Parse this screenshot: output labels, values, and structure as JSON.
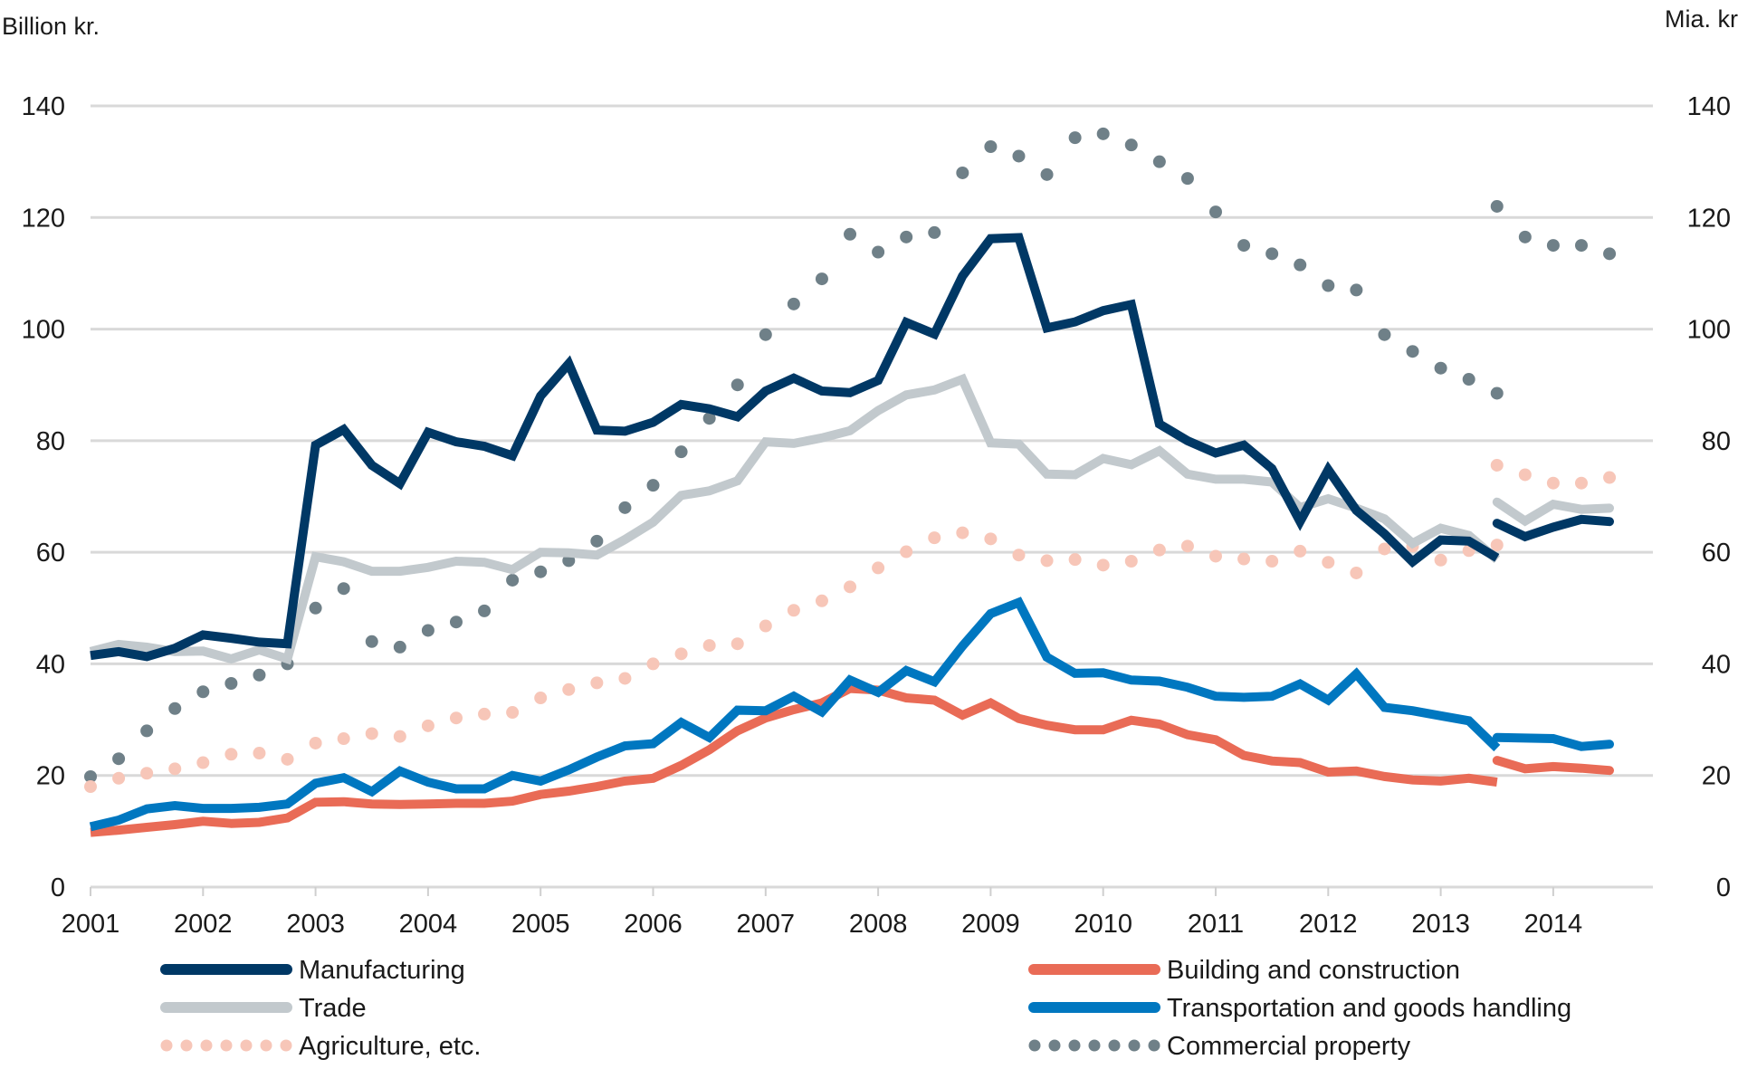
{
  "chart_data": {
    "type": "line",
    "title": "",
    "left_axis_label": "Billion kr.",
    "right_axis_label": "Mia. kr.",
    "xlabel": "",
    "ylabel": "Billion kr.",
    "xlim": [
      2001,
      2014.9
    ],
    "ylim": [
      0,
      140
    ],
    "y_ticks": [
      0,
      20,
      40,
      60,
      80,
      100,
      120,
      140
    ],
    "y_tick_labels": [
      "0",
      "20",
      "40",
      "60",
      "80",
      "100",
      "120",
      "140"
    ],
    "x_ticks": [
      2001,
      2002,
      2003,
      2004,
      2005,
      2006,
      2007,
      2008,
      2009,
      2010,
      2011,
      2012,
      2013,
      2014
    ],
    "x_tick_labels": [
      "2001",
      "2002",
      "2003",
      "2004",
      "2005",
      "2006",
      "2007",
      "2008",
      "2009",
      "2010",
      "2011",
      "2012",
      "2013",
      "2014"
    ],
    "grid": true,
    "legend_position": "bottom",
    "series": [
      {
        "name": "Manufacturing",
        "color": "#003865",
        "style": "solid",
        "segments": [
          {
            "x": [
              2001.0,
              2001.25,
              2001.5,
              2001.75,
              2002.0,
              2002.25,
              2002.5,
              2002.75,
              2003.0,
              2003.25,
              2003.5,
              2003.75,
              2004.0,
              2004.25,
              2004.5,
              2004.75,
              2005.0,
              2005.25,
              2005.5,
              2005.75,
              2006.0,
              2006.25,
              2006.5,
              2006.75,
              2007.0,
              2007.25,
              2007.5,
              2007.75,
              2008.0,
              2008.25,
              2008.5,
              2008.75,
              2009.0,
              2009.25,
              2009.5,
              2009.75,
              2010.0,
              2010.25,
              2010.5,
              2010.75,
              2011.0,
              2011.25,
              2011.5,
              2011.75,
              2012.0,
              2012.25,
              2012.5,
              2012.75,
              2013.0,
              2013.25,
              2013.5
            ],
            "y": [
              41.5,
              42.2,
              41.3,
              42.8,
              45.2,
              44.6,
              43.9,
              43.6,
              79.2,
              82.0,
              75.6,
              72.3,
              81.5,
              79.8,
              79.0,
              77.3,
              88.0,
              93.8,
              81.9,
              81.7,
              83.3,
              86.5,
              85.7,
              84.3,
              88.9,
              91.2,
              88.9,
              88.6,
              90.8,
              101.2,
              99.1,
              109.5,
              116.2,
              116.4,
              100.2,
              101.3,
              103.3,
              104.4,
              83.0,
              80.0,
              77.8,
              79.2,
              75.0,
              65.5,
              74.8,
              67.5,
              63.3,
              58.3,
              62.2,
              62.0,
              59.0
            ]
          },
          {
            "x": [
              2013.5,
              2013.75,
              2014.0,
              2014.25,
              2014.5
            ],
            "y": [
              65.2,
              62.8,
              64.5,
              65.9,
              65.5
            ]
          }
        ]
      },
      {
        "name": "Trade",
        "color": "#c2c9cd",
        "style": "solid",
        "segments": [
          {
            "x": [
              2001.0,
              2001.25,
              2001.5,
              2001.75,
              2002.0,
              2002.25,
              2002.5,
              2002.75,
              2003.0,
              2003.25,
              2003.5,
              2003.75,
              2004.0,
              2004.25,
              2004.5,
              2004.75,
              2005.0,
              2005.25,
              2005.5,
              2005.75,
              2006.0,
              2006.25,
              2006.5,
              2006.75,
              2007.0,
              2007.25,
              2007.5,
              2007.75,
              2008.0,
              2008.25,
              2008.5,
              2008.75,
              2009.0,
              2009.25,
              2009.5,
              2009.75,
              2010.0,
              2010.25,
              2010.5,
              2010.75,
              2011.0,
              2011.25,
              2011.5,
              2011.75,
              2012.0,
              2012.25,
              2012.5,
              2012.75,
              2013.0,
              2013.25,
              2013.5
            ],
            "y": [
              42.2,
              43.5,
              43.0,
              42.2,
              42.3,
              40.9,
              42.5,
              40.9,
              59.2,
              58.3,
              56.6,
              56.6,
              57.3,
              58.4,
              58.2,
              56.9,
              60.0,
              59.9,
              59.5,
              62.3,
              65.4,
              70.2,
              71.0,
              72.8,
              79.8,
              79.5,
              80.5,
              81.8,
              85.4,
              88.2,
              89.1,
              91.0,
              79.6,
              79.4,
              74.0,
              73.9,
              76.8,
              75.7,
              78.2,
              74.0,
              73.1,
              73.1,
              72.6,
              68.0,
              69.6,
              67.9,
              66.0,
              61.6,
              64.3,
              63.0,
              58.7
            ]
          },
          {
            "x": [
              2013.5,
              2013.75,
              2014.0,
              2014.25,
              2014.5
            ],
            "y": [
              69.0,
              65.6,
              68.6,
              67.7,
              67.9
            ]
          }
        ]
      },
      {
        "name": "Agriculture, etc.",
        "color": "#f7c6b8",
        "style": "dotted",
        "segments": [
          {
            "x": [
              2001.0,
              2001.25,
              2001.5,
              2001.75,
              2002.0,
              2002.25,
              2002.5,
              2002.75,
              2003.0,
              2003.25,
              2003.5,
              2003.75,
              2004.0,
              2004.25,
              2004.5,
              2004.75,
              2005.0,
              2005.25,
              2005.5,
              2005.75,
              2006.0,
              2006.25,
              2006.5,
              2006.75,
              2007.0,
              2007.25,
              2007.5,
              2007.75,
              2008.0,
              2008.25,
              2008.5,
              2008.75,
              2009.0,
              2009.25,
              2009.5,
              2009.75,
              2010.0,
              2010.25,
              2010.5,
              2010.75,
              2011.0,
              2011.25,
              2011.5,
              2011.75,
              2012.0,
              2012.25,
              2012.5,
              2012.75,
              2013.0,
              2013.25,
              2013.5
            ],
            "y": [
              18.0,
              19.5,
              20.4,
              21.2,
              22.3,
              23.8,
              24.0,
              22.9,
              25.8,
              26.6,
              27.5,
              27.0,
              28.9,
              30.3,
              31.0,
              31.3,
              33.9,
              35.4,
              36.6,
              37.4,
              40.0,
              41.8,
              43.3,
              43.6,
              46.8,
              49.6,
              51.3,
              53.8,
              57.2,
              60.1,
              62.6,
              63.5,
              62.4,
              59.5,
              58.5,
              58.7,
              57.7,
              58.4,
              60.4,
              61.1,
              59.3,
              58.8,
              58.4,
              60.2,
              58.2,
              56.3,
              60.6,
              61.1,
              58.6,
              60.3,
              61.3
            ]
          },
          {
            "x": [
              2013.5,
              2013.75,
              2014.0,
              2014.25,
              2014.5
            ],
            "y": [
              75.6,
              73.9,
              72.4,
              72.4,
              73.4
            ]
          }
        ]
      },
      {
        "name": "Building and construction",
        "color": "#e96b56",
        "style": "solid",
        "segments": [
          {
            "x": [
              2001.0,
              2001.25,
              2001.5,
              2001.75,
              2002.0,
              2002.25,
              2002.5,
              2002.75,
              2003.0,
              2003.25,
              2003.5,
              2003.75,
              2004.0,
              2004.25,
              2004.5,
              2004.75,
              2005.0,
              2005.25,
              2005.5,
              2005.75,
              2006.0,
              2006.25,
              2006.5,
              2006.75,
              2007.0,
              2007.25,
              2007.5,
              2007.75,
              2008.0,
              2008.25,
              2008.5,
              2008.75,
              2009.0,
              2009.25,
              2009.5,
              2009.75,
              2010.0,
              2010.25,
              2010.5,
              2010.75,
              2011.0,
              2011.25,
              2011.5,
              2011.75,
              2012.0,
              2012.25,
              2012.5,
              2012.75,
              2013.0,
              2013.25,
              2013.5
            ],
            "y": [
              9.8,
              10.2,
              10.7,
              11.2,
              11.8,
              11.4,
              11.6,
              12.4,
              15.2,
              15.3,
              14.9,
              14.8,
              14.9,
              15.0,
              15.0,
              15.4,
              16.6,
              17.2,
              18.0,
              19.0,
              19.5,
              21.8,
              24.6,
              28.0,
              30.3,
              31.8,
              33.0,
              35.6,
              35.3,
              33.9,
              33.5,
              30.8,
              33.0,
              30.2,
              29.0,
              28.2,
              28.2,
              29.9,
              29.2,
              27.3,
              26.4,
              23.6,
              22.6,
              22.3,
              20.6,
              20.8,
              19.8,
              19.2,
              19.0,
              19.5,
              18.8
            ]
          },
          {
            "x": [
              2013.5,
              2013.75,
              2014.0,
              2014.25,
              2014.5
            ],
            "y": [
              22.7,
              21.2,
              21.6,
              21.3,
              20.9
            ]
          }
        ]
      },
      {
        "name": "Transportation and goods handling",
        "color": "#0077c0",
        "style": "solid",
        "segments": [
          {
            "x": [
              2001.0,
              2001.25,
              2001.5,
              2001.75,
              2002.0,
              2002.25,
              2002.5,
              2002.75,
              2003.0,
              2003.25,
              2003.5,
              2003.75,
              2004.0,
              2004.25,
              2004.5,
              2004.75,
              2005.0,
              2005.25,
              2005.5,
              2005.75,
              2006.0,
              2006.25,
              2006.5,
              2006.75,
              2007.0,
              2007.25,
              2007.5,
              2007.75,
              2008.0,
              2008.25,
              2008.5,
              2008.75,
              2009.0,
              2009.25,
              2009.5,
              2009.75,
              2010.0,
              2010.25,
              2010.5,
              2010.75,
              2011.0,
              2011.25,
              2011.5,
              2011.75,
              2012.0,
              2012.25,
              2012.5,
              2012.75,
              2013.0,
              2013.25,
              2013.5
            ],
            "y": [
              10.8,
              12.0,
              14.0,
              14.6,
              14.1,
              14.1,
              14.3,
              14.9,
              18.6,
              19.6,
              17.1,
              20.8,
              18.8,
              17.6,
              17.6,
              20.0,
              19.0,
              21.0,
              23.3,
              25.3,
              25.7,
              29.5,
              26.8,
              31.7,
              31.6,
              34.2,
              31.4,
              37.1,
              34.9,
              38.8,
              36.8,
              43.2,
              49.0,
              51.0,
              41.2,
              38.3,
              38.4,
              37.1,
              36.9,
              35.8,
              34.2,
              34.0,
              34.2,
              36.4,
              33.5,
              38.2,
              32.2,
              31.6,
              30.7,
              29.8,
              24.9
            ]
          },
          {
            "x": [
              2013.5,
              2013.75,
              2014.0,
              2014.25,
              2014.5
            ],
            "y": [
              26.8,
              26.7,
              26.6,
              25.2,
              25.6
            ]
          }
        ]
      },
      {
        "name": "Commercial property",
        "color": "#6f8088",
        "style": "dotted",
        "segments": [
          {
            "x": [
              2001.0,
              2001.25,
              2001.5,
              2001.75,
              2002.0,
              2002.25,
              2002.5,
              2002.75,
              2003.0,
              2003.25,
              2003.5,
              2003.75,
              2004.0,
              2004.25,
              2004.5,
              2004.75,
              2005.0,
              2005.25,
              2005.5,
              2005.75,
              2006.0,
              2006.25,
              2006.5,
              2006.75,
              2007.0,
              2007.25,
              2007.5,
              2007.75,
              2008.0,
              2008.25,
              2008.5,
              2008.75,
              2009.0,
              2009.25,
              2009.5,
              2009.75,
              2010.0,
              2010.25,
              2010.5,
              2010.75,
              2011.0,
              2011.25,
              2011.5,
              2011.75,
              2012.0,
              2012.25,
              2012.5,
              2012.75,
              2013.0,
              2013.25,
              2013.5
            ],
            "y": [
              19.8,
              23.0,
              28.0,
              32.0,
              35.0,
              36.5,
              38.0,
              40.0,
              50.0,
              53.5,
              44.0,
              43.0,
              46.0,
              47.5,
              49.5,
              55.0,
              56.5,
              58.5,
              62.0,
              68.0,
              72.0,
              78.0,
              84.0,
              90.0,
              99.0,
              104.5,
              109.0,
              117.0,
              113.8,
              116.5,
              117.3,
              128.0,
              132.7,
              131.0,
              127.7,
              134.3,
              135.0,
              133.0,
              130.0,
              127.0,
              121.0,
              115.0,
              113.5,
              111.5,
              107.8,
              107.0,
              99.0,
              96.0,
              93.0,
              91.0,
              88.5
            ]
          },
          {
            "x": [
              2013.5,
              2013.75,
              2014.0,
              2014.25,
              2014.5
            ],
            "y": [
              122.0,
              116.5,
              115.0,
              115.0,
              113.5
            ]
          }
        ]
      }
    ]
  }
}
